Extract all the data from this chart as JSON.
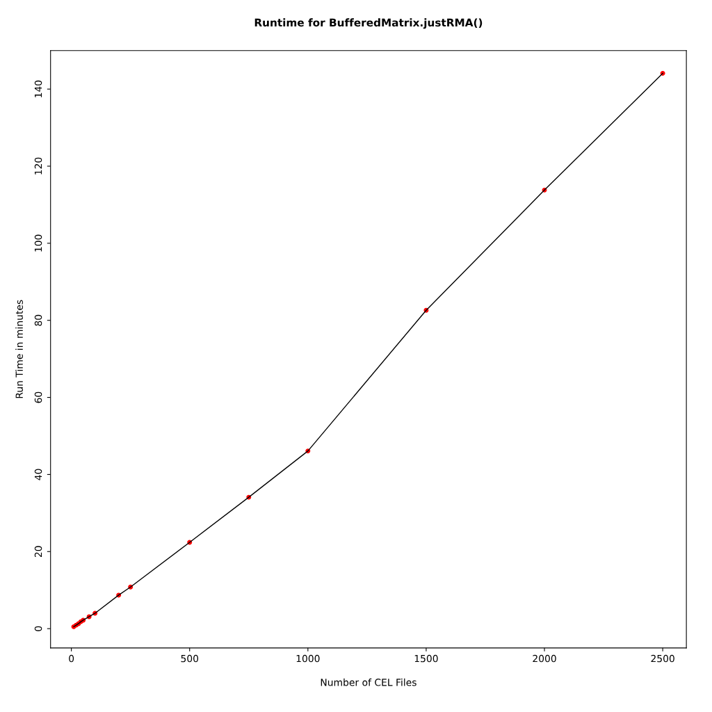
{
  "chart_data": {
    "type": "line",
    "title": "Runtime for BufferedMatrix.justRMA()",
    "xlabel": "Number of CEL Files",
    "ylabel": "Run Time in minutes",
    "x": [
      10,
      20,
      30,
      40,
      50,
      75,
      100,
      200,
      250,
      500,
      750,
      1000,
      1500,
      2000,
      2500
    ],
    "series": [
      {
        "type": "scatter",
        "marker": "circle",
        "color": "#ff0000",
        "values": [
          0.5,
          0.9,
          1.3,
          1.8,
          2.2,
          3.1,
          4.0,
          8.7,
          10.8,
          22.4,
          34.1,
          46.1,
          82.6,
          113.8,
          144.1
        ]
      },
      {
        "marker": "none",
        "color": "#000000",
        "values": [
          0.5,
          0.9,
          1.3,
          1.8,
          2.2,
          3.1,
          4.0,
          8.7,
          10.8,
          22.4,
          34.1,
          46.1,
          82.6,
          113.8,
          144.1
        ]
      }
    ],
    "line_style": "solid",
    "grid": false,
    "legend": false,
    "xlim": [
      -88,
      2600
    ],
    "ylim": [
      -5,
      150
    ],
    "xticks": [
      0,
      500,
      1000,
      1500,
      2000,
      2500
    ],
    "yticks": [
      0,
      20,
      40,
      60,
      80,
      100,
      120,
      140
    ]
  }
}
